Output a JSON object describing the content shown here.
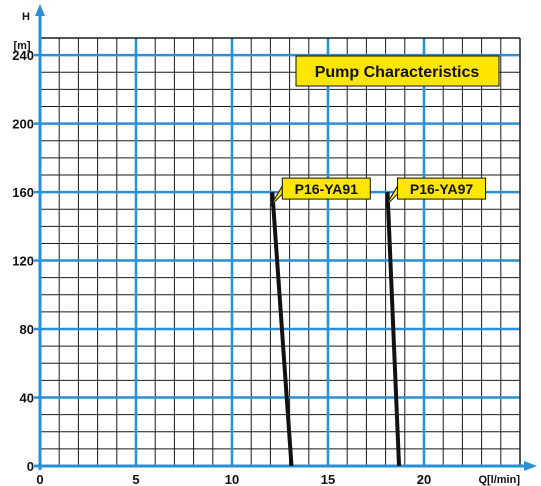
{
  "chart_data": {
    "type": "line",
    "title": "Pump Characteristics",
    "xlabel": "Q[l/min]",
    "ylabel_top": "H",
    "ylabel_unit": "[m]",
    "xlim": [
      0,
      25
    ],
    "ylim": [
      0,
      250
    ],
    "x_ticks": [
      "0",
      "5",
      "10",
      "15",
      "20"
    ],
    "y_ticks": [
      "0",
      "40",
      "80",
      "120",
      "160",
      "200",
      "240"
    ],
    "grid": true,
    "series": [
      {
        "name": "P16-YA91",
        "points": [
          [
            12.1,
            160
          ],
          [
            13.1,
            0
          ]
        ]
      },
      {
        "name": "P16-YA97",
        "points": [
          [
            18.1,
            160
          ],
          [
            18.7,
            0
          ]
        ]
      }
    ],
    "colors": {
      "axis": "#2b8fd6",
      "grid_major": "#2b8fd6",
      "grid_minor": "#1a1a1a",
      "label_box": "#ffe600",
      "curve": "#111111"
    }
  }
}
